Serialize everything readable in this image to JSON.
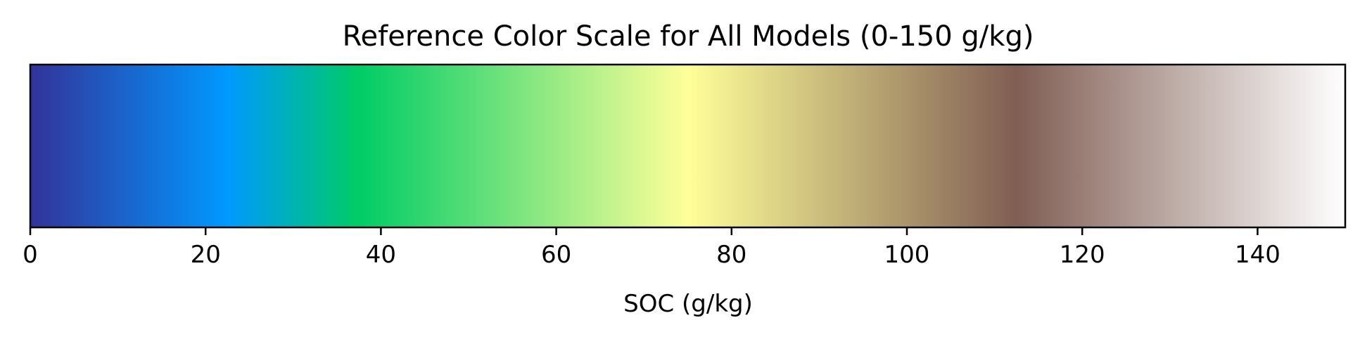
{
  "chart_data": {
    "type": "heatmap",
    "title": "Reference Color Scale for All Models (0-150 g/kg)",
    "xlabel": "SOC (g/kg)",
    "ylabel": "",
    "xlim": [
      0,
      150
    ],
    "ticks": [
      0,
      20,
      40,
      60,
      80,
      100,
      120,
      140
    ],
    "tick_labels": [
      "0",
      "20",
      "40",
      "60",
      "80",
      "100",
      "120",
      "140"
    ],
    "colormap": "terrain",
    "color_stops": [
      {
        "value": 0,
        "color": "#333399"
      },
      {
        "value": 22.5,
        "color": "#0099ff"
      },
      {
        "value": 37.5,
        "color": "#00cc66"
      },
      {
        "value": 75,
        "color": "#ffff99"
      },
      {
        "value": 112.5,
        "color": "#805e54"
      },
      {
        "value": 150,
        "color": "#ffffff"
      }
    ],
    "grid": false,
    "legend": "none"
  }
}
